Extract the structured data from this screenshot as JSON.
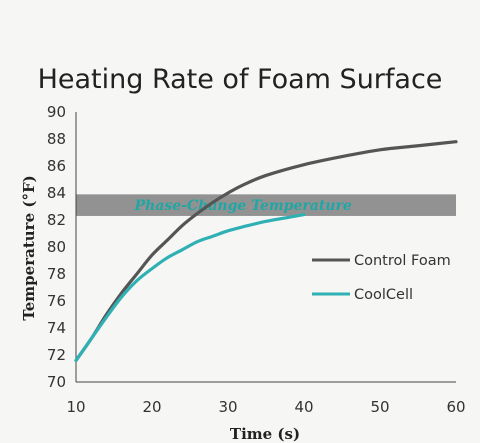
{
  "chart_data": {
    "type": "line",
    "title": "Heating Rate of Foam Surface",
    "xlabel": "Time (s)",
    "ylabel": "Temperature (°F)",
    "xlim": [
      10,
      60
    ],
    "ylim": [
      70,
      90
    ],
    "x_ticks": [
      "10",
      "20",
      "30",
      "40",
      "50",
      "60"
    ],
    "y_ticks": [
      "70",
      "72",
      "74",
      "76",
      "78",
      "80",
      "82",
      "84",
      "86",
      "88",
      "90"
    ],
    "legend_position": "right",
    "band": {
      "label": "Phase-Change Temperature",
      "y_range": [
        82.3,
        83.9
      ],
      "color": "#808080"
    },
    "series": [
      {
        "name": "Control Foam",
        "color": "#555555",
        "points": [
          [
            10,
            71.6
          ],
          [
            12,
            73.2
          ],
          [
            14,
            75.0
          ],
          [
            16,
            76.6
          ],
          [
            18,
            78.0
          ],
          [
            20,
            79.4
          ],
          [
            22,
            80.5
          ],
          [
            24,
            81.6
          ],
          [
            26,
            82.5
          ],
          [
            28,
            83.3
          ],
          [
            30,
            84.0
          ],
          [
            32,
            84.6
          ],
          [
            35,
            85.3
          ],
          [
            40,
            86.1
          ],
          [
            45,
            86.7
          ],
          [
            50,
            87.2
          ],
          [
            55,
            87.5
          ],
          [
            60,
            87.8
          ]
        ]
      },
      {
        "name": "CoolCell",
        "color": "#2fb0b5",
        "points": [
          [
            10,
            71.6
          ],
          [
            12,
            73.2
          ],
          [
            14,
            74.8
          ],
          [
            16,
            76.3
          ],
          [
            18,
            77.5
          ],
          [
            20,
            78.4
          ],
          [
            22,
            79.2
          ],
          [
            24,
            79.8
          ],
          [
            26,
            80.4
          ],
          [
            28,
            80.8
          ],
          [
            30,
            81.2
          ],
          [
            32,
            81.5
          ],
          [
            35,
            81.9
          ],
          [
            38,
            82.2
          ],
          [
            40,
            82.4
          ]
        ]
      }
    ]
  }
}
